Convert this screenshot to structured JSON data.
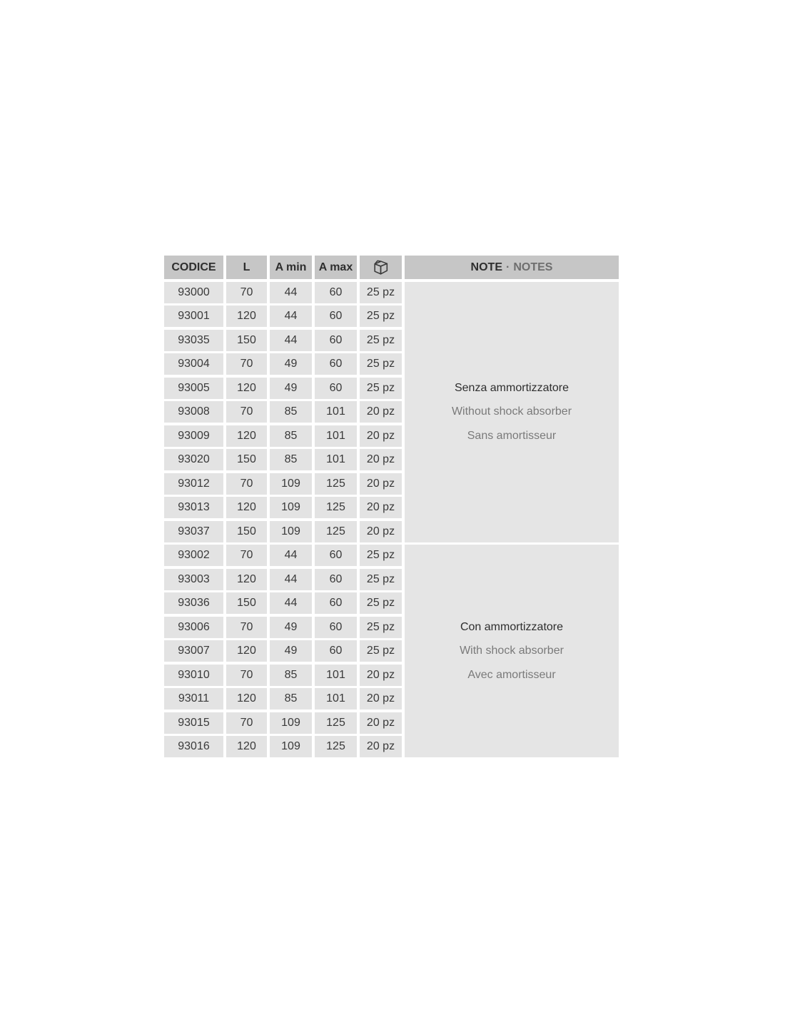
{
  "colors": {
    "header_bg": "#c6c6c6",
    "cell_bg": "#e3e3e3",
    "note_block_bg": "#e5e5e5",
    "text_dark": "#3a3a3a",
    "text_gray": "#7a7a7a"
  },
  "table": {
    "header": {
      "codice": "CODICE",
      "l": "L",
      "a_min": "A min",
      "a_max": "A max",
      "package_icon": "package-icon",
      "note": "NOTE",
      "note_separator": "·",
      "notes": "NOTES"
    },
    "sections": [
      {
        "note_lines": {
          "it": "Senza ammortizzatore",
          "en": "Without shock absorber",
          "fr": "Sans amortisseur"
        },
        "rows": [
          {
            "codice": "93000",
            "l": "70",
            "a_min": "44",
            "a_max": "60",
            "qty": "25 pz"
          },
          {
            "codice": "93001",
            "l": "120",
            "a_min": "44",
            "a_max": "60",
            "qty": "25 pz"
          },
          {
            "codice": "93035",
            "l": "150",
            "a_min": "44",
            "a_max": "60",
            "qty": "25 pz"
          },
          {
            "codice": "93004",
            "l": "70",
            "a_min": "49",
            "a_max": "60",
            "qty": "25 pz"
          },
          {
            "codice": "93005",
            "l": "120",
            "a_min": "49",
            "a_max": "60",
            "qty": "25 pz"
          },
          {
            "codice": "93008",
            "l": "70",
            "a_min": "85",
            "a_max": "101",
            "qty": "20 pz"
          },
          {
            "codice": "93009",
            "l": "120",
            "a_min": "85",
            "a_max": "101",
            "qty": "20 pz"
          },
          {
            "codice": "93020",
            "l": "150",
            "a_min": "85",
            "a_max": "101",
            "qty": "20 pz"
          },
          {
            "codice": "93012",
            "l": "70",
            "a_min": "109",
            "a_max": "125",
            "qty": "20 pz"
          },
          {
            "codice": "93013",
            "l": "120",
            "a_min": "109",
            "a_max": "125",
            "qty": "20 pz"
          },
          {
            "codice": "93037",
            "l": "150",
            "a_min": "109",
            "a_max": "125",
            "qty": "20 pz"
          }
        ]
      },
      {
        "note_lines": {
          "it": "Con ammortizzatore",
          "en": "With shock absorber",
          "fr": "Avec amortisseur"
        },
        "rows": [
          {
            "codice": "93002",
            "l": "70",
            "a_min": "44",
            "a_max": "60",
            "qty": "25 pz"
          },
          {
            "codice": "93003",
            "l": "120",
            "a_min": "44",
            "a_max": "60",
            "qty": "25 pz"
          },
          {
            "codice": "93036",
            "l": "150",
            "a_min": "44",
            "a_max": "60",
            "qty": "25 pz"
          },
          {
            "codice": "93006",
            "l": "70",
            "a_min": "49",
            "a_max": "60",
            "qty": "25 pz"
          },
          {
            "codice": "93007",
            "l": "120",
            "a_min": "49",
            "a_max": "60",
            "qty": "25 pz"
          },
          {
            "codice": "93010",
            "l": "70",
            "a_min": "85",
            "a_max": "101",
            "qty": "20 pz"
          },
          {
            "codice": "93011",
            "l": "120",
            "a_min": "85",
            "a_max": "101",
            "qty": "20 pz"
          },
          {
            "codice": "93015",
            "l": "70",
            "a_min": "109",
            "a_max": "125",
            "qty": "20 pz"
          },
          {
            "codice": "93016",
            "l": "120",
            "a_min": "109",
            "a_max": "125",
            "qty": "20 pz"
          }
        ]
      }
    ]
  }
}
